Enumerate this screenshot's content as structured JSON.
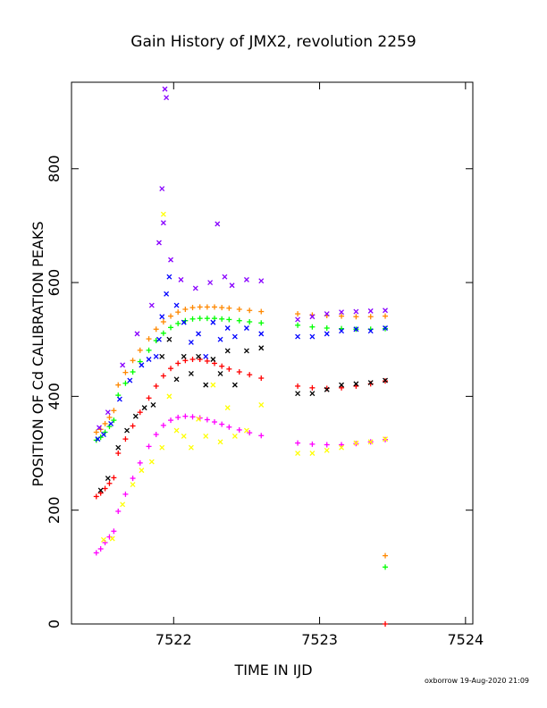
{
  "chart_data": {
    "type": "scatter",
    "title": "Gain History of JMX2, revolution 2259",
    "xlabel": "TIME IN IJD",
    "ylabel": "POSITION OF Cd CALIBRATION PEAKS",
    "xlim": [
      7521.3,
      7524.05
    ],
    "ylim": [
      0,
      952
    ],
    "x_ticks": [
      7522,
      7523,
      7524
    ],
    "y_ticks": [
      0,
      200,
      400,
      600,
      800
    ],
    "grid": false,
    "legend": "none",
    "series": [
      {
        "marker": "plus",
        "color": "#ff8800",
        "points": [
          [
            7521.47,
            337
          ],
          [
            7521.5,
            342
          ],
          [
            7521.53,
            352
          ],
          [
            7521.56,
            363
          ],
          [
            7521.59,
            375
          ],
          [
            7521.62,
            420
          ],
          [
            7521.67,
            442
          ],
          [
            7521.72,
            463
          ],
          [
            7521.77,
            481
          ],
          [
            7521.83,
            501
          ],
          [
            7521.88,
            518
          ],
          [
            7521.93,
            531
          ],
          [
            7521.98,
            541
          ],
          [
            7522.03,
            548
          ],
          [
            7522.08,
            553
          ],
          [
            7522.13,
            556
          ],
          [
            7522.18,
            557
          ],
          [
            7522.23,
            557
          ],
          [
            7522.28,
            557
          ],
          [
            7522.33,
            556
          ],
          [
            7522.38,
            555
          ],
          [
            7522.45,
            553
          ],
          [
            7522.52,
            551
          ],
          [
            7522.6,
            549
          ],
          [
            7522.85,
            545
          ],
          [
            7522.95,
            543
          ],
          [
            7523.05,
            542
          ],
          [
            7523.15,
            541
          ],
          [
            7523.25,
            540
          ],
          [
            7523.35,
            540
          ],
          [
            7523.45,
            541
          ],
          [
            7523.45,
            120
          ]
        ]
      },
      {
        "marker": "plus",
        "color": "#00ff00",
        "points": [
          [
            7521.47,
            323
          ],
          [
            7521.5,
            328
          ],
          [
            7521.53,
            337
          ],
          [
            7521.56,
            347
          ],
          [
            7521.59,
            358
          ],
          [
            7521.62,
            402
          ],
          [
            7521.67,
            423
          ],
          [
            7521.72,
            443
          ],
          [
            7521.77,
            461
          ],
          [
            7521.83,
            481
          ],
          [
            7521.88,
            498
          ],
          [
            7521.93,
            511
          ],
          [
            7521.98,
            521
          ],
          [
            7522.03,
            528
          ],
          [
            7522.08,
            533
          ],
          [
            7522.13,
            536
          ],
          [
            7522.18,
            537
          ],
          [
            7522.23,
            537
          ],
          [
            7522.28,
            537
          ],
          [
            7522.33,
            536
          ],
          [
            7522.38,
            535
          ],
          [
            7522.45,
            533
          ],
          [
            7522.52,
            531
          ],
          [
            7522.6,
            529
          ],
          [
            7522.85,
            525
          ],
          [
            7522.95,
            522
          ],
          [
            7523.05,
            520
          ],
          [
            7523.15,
            519
          ],
          [
            7523.25,
            518
          ],
          [
            7523.35,
            518
          ],
          [
            7523.45,
            519
          ],
          [
            7523.45,
            100
          ]
        ]
      },
      {
        "marker": "plus",
        "color": "#ff0000",
        "points": [
          [
            7521.47,
            224
          ],
          [
            7521.5,
            230
          ],
          [
            7521.53,
            238
          ],
          [
            7521.56,
            247
          ],
          [
            7521.59,
            257
          ],
          [
            7521.62,
            300
          ],
          [
            7521.67,
            325
          ],
          [
            7521.72,
            348
          ],
          [
            7521.77,
            372
          ],
          [
            7521.83,
            397
          ],
          [
            7521.88,
            418
          ],
          [
            7521.93,
            436
          ],
          [
            7521.98,
            449
          ],
          [
            7522.03,
            458
          ],
          [
            7522.08,
            463
          ],
          [
            7522.13,
            465
          ],
          [
            7522.18,
            465
          ],
          [
            7522.23,
            462
          ],
          [
            7522.28,
            458
          ],
          [
            7522.33,
            453
          ],
          [
            7522.38,
            448
          ],
          [
            7522.45,
            443
          ],
          [
            7522.52,
            438
          ],
          [
            7522.6,
            432
          ],
          [
            7522.85,
            418
          ],
          [
            7522.95,
            415
          ],
          [
            7523.05,
            414
          ],
          [
            7523.15,
            415
          ],
          [
            7523.25,
            418
          ],
          [
            7523.35,
            422
          ],
          [
            7523.45,
            427
          ],
          [
            7523.45,
            0
          ]
        ]
      },
      {
        "marker": "plus",
        "color": "#ff00ff",
        "points": [
          [
            7521.47,
            125
          ],
          [
            7521.5,
            132
          ],
          [
            7521.53,
            143
          ],
          [
            7521.56,
            153
          ],
          [
            7521.59,
            163
          ],
          [
            7521.62,
            198
          ],
          [
            7521.67,
            228
          ],
          [
            7521.72,
            256
          ],
          [
            7521.77,
            283
          ],
          [
            7521.83,
            312
          ],
          [
            7521.88,
            333
          ],
          [
            7521.93,
            349
          ],
          [
            7521.98,
            358
          ],
          [
            7522.03,
            363
          ],
          [
            7522.08,
            365
          ],
          [
            7522.13,
            364
          ],
          [
            7522.18,
            362
          ],
          [
            7522.23,
            359
          ],
          [
            7522.28,
            355
          ],
          [
            7522.33,
            351
          ],
          [
            7522.38,
            346
          ],
          [
            7522.45,
            341
          ],
          [
            7522.52,
            336
          ],
          [
            7522.6,
            331
          ],
          [
            7522.85,
            318
          ],
          [
            7522.95,
            316
          ],
          [
            7523.05,
            315
          ],
          [
            7523.15,
            315
          ],
          [
            7523.25,
            317
          ],
          [
            7523.35,
            320
          ],
          [
            7523.45,
            324
          ]
        ]
      },
      {
        "marker": "x",
        "color": "#0000ff",
        "points": [
          [
            7521.48,
            325
          ],
          [
            7521.52,
            333
          ],
          [
            7521.57,
            352
          ],
          [
            7521.63,
            395
          ],
          [
            7521.7,
            428
          ],
          [
            7521.78,
            455
          ],
          [
            7521.83,
            465
          ],
          [
            7521.88,
            470
          ],
          [
            7521.9,
            500
          ],
          [
            7521.92,
            540
          ],
          [
            7521.95,
            580
          ],
          [
            7521.97,
            610
          ],
          [
            7522.02,
            560
          ],
          [
            7522.07,
            530
          ],
          [
            7522.12,
            495
          ],
          [
            7522.17,
            510
          ],
          [
            7522.22,
            470
          ],
          [
            7522.27,
            530
          ],
          [
            7522.32,
            500
          ],
          [
            7522.37,
            520
          ],
          [
            7522.42,
            505
          ],
          [
            7522.5,
            520
          ],
          [
            7522.6,
            510
          ],
          [
            7522.85,
            505
          ],
          [
            7522.95,
            505
          ],
          [
            7523.05,
            510
          ],
          [
            7523.15,
            515
          ],
          [
            7523.25,
            518
          ],
          [
            7523.35,
            515
          ],
          [
            7523.45,
            520
          ]
        ]
      },
      {
        "marker": "x",
        "color": "#8800ff",
        "points": [
          [
            7521.49,
            345
          ],
          [
            7521.55,
            372
          ],
          [
            7521.65,
            455
          ],
          [
            7521.75,
            510
          ],
          [
            7521.85,
            560
          ],
          [
            7521.9,
            670
          ],
          [
            7521.92,
            765
          ],
          [
            7521.94,
            940
          ],
          [
            7521.95,
            925
          ],
          [
            7521.93,
            705
          ],
          [
            7521.98,
            640
          ],
          [
            7522.05,
            605
          ],
          [
            7522.15,
            590
          ],
          [
            7522.25,
            600
          ],
          [
            7522.3,
            703
          ],
          [
            7522.35,
            610
          ],
          [
            7522.4,
            595
          ],
          [
            7522.5,
            605
          ],
          [
            7522.6,
            603
          ],
          [
            7522.85,
            535
          ],
          [
            7522.95,
            540
          ],
          [
            7523.05,
            545
          ],
          [
            7523.15,
            548
          ],
          [
            7523.25,
            549
          ],
          [
            7523.35,
            550
          ],
          [
            7523.45,
            551
          ]
        ]
      },
      {
        "marker": "x",
        "color": "#000000",
        "points": [
          [
            7521.5,
            235
          ],
          [
            7521.55,
            256
          ],
          [
            7521.62,
            310
          ],
          [
            7521.68,
            340
          ],
          [
            7521.74,
            365
          ],
          [
            7521.8,
            380
          ],
          [
            7521.86,
            385
          ],
          [
            7521.92,
            470
          ],
          [
            7521.97,
            500
          ],
          [
            7522.02,
            430
          ],
          [
            7522.07,
            470
          ],
          [
            7522.12,
            440
          ],
          [
            7522.17,
            470
          ],
          [
            7522.22,
            420
          ],
          [
            7522.27,
            465
          ],
          [
            7522.32,
            440
          ],
          [
            7522.37,
            480
          ],
          [
            7522.42,
            420
          ],
          [
            7522.5,
            480
          ],
          [
            7522.6,
            485
          ],
          [
            7522.85,
            405
          ],
          [
            7522.95,
            405
          ],
          [
            7523.05,
            412
          ],
          [
            7523.15,
            420
          ],
          [
            7523.25,
            422
          ],
          [
            7523.35,
            424
          ],
          [
            7523.45,
            428
          ]
        ]
      },
      {
        "marker": "x",
        "color": "#ffff00",
        "points": [
          [
            7521.52,
            148
          ],
          [
            7521.58,
            150
          ],
          [
            7521.65,
            210
          ],
          [
            7521.72,
            245
          ],
          [
            7521.78,
            270
          ],
          [
            7521.85,
            285
          ],
          [
            7521.92,
            310
          ],
          [
            7521.93,
            720
          ],
          [
            7521.97,
            400
          ],
          [
            7522.02,
            340
          ],
          [
            7522.07,
            330
          ],
          [
            7522.12,
            310
          ],
          [
            7522.17,
            360
          ],
          [
            7522.22,
            330
          ],
          [
            7522.27,
            420
          ],
          [
            7522.32,
            320
          ],
          [
            7522.37,
            380
          ],
          [
            7522.42,
            330
          ],
          [
            7522.5,
            340
          ],
          [
            7522.6,
            385
          ],
          [
            7522.85,
            300
          ],
          [
            7522.95,
            300
          ],
          [
            7523.05,
            305
          ],
          [
            7523.15,
            310
          ],
          [
            7523.25,
            318
          ],
          [
            7523.35,
            320
          ],
          [
            7523.45,
            325
          ]
        ]
      }
    ]
  },
  "footer": {
    "credit": "oxborrow 19-Aug-2020 21:09"
  }
}
